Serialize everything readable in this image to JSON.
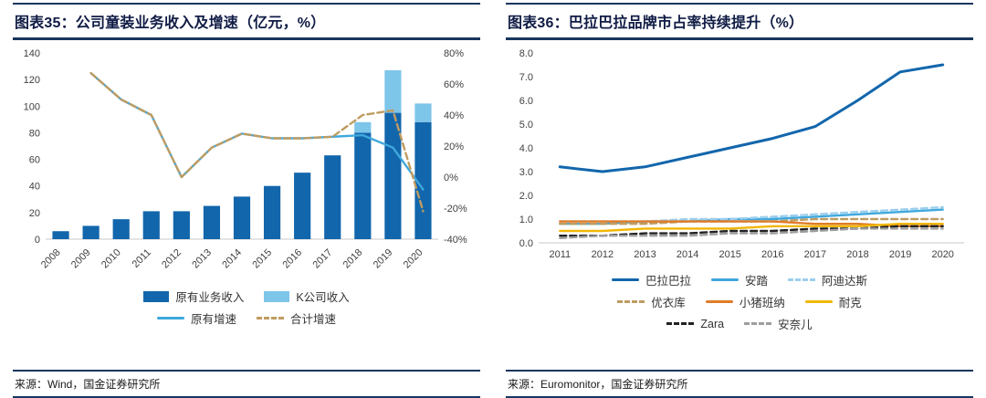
{
  "panels": [
    {
      "title": "图表35：公司童装业务收入及增速（亿元，%）",
      "source": "来源：Wind，国金证券研究所",
      "legend_rows": [
        [
          {
            "label": "原有业务收入",
            "swatch": "bar",
            "color": "#1266AC"
          },
          {
            "label": "K公司收入",
            "swatch": "bar",
            "color": "#7EC5EA"
          }
        ],
        [
          {
            "label": "原有增速",
            "swatch": "line",
            "color": "#3FA8DC"
          },
          {
            "label": "合计增速",
            "swatch": "dash",
            "color": "#BF9C62"
          }
        ]
      ]
    },
    {
      "title": "图表36：巴拉巴拉品牌市占率持续提升（%）",
      "source": "来源：Euromonitor，国金证券研究所",
      "legend_rows": [
        [
          {
            "label": "巴拉巴拉",
            "swatch": "line",
            "color": "#1266AC"
          },
          {
            "label": "安踏",
            "swatch": "line",
            "color": "#3FA8DC"
          },
          {
            "label": "阿迪达斯",
            "swatch": "dash",
            "color": "#9DCFEE"
          }
        ],
        [
          {
            "label": "优衣库",
            "swatch": "dash",
            "color": "#BF9C62"
          },
          {
            "label": "小猪班纳",
            "swatch": "line",
            "color": "#E07B28"
          },
          {
            "label": "耐克",
            "swatch": "line",
            "color": "#F2B705"
          }
        ],
        [
          {
            "label": "Zara",
            "swatch": "dash",
            "color": "#222222"
          },
          {
            "label": "安奈儿",
            "swatch": "dash",
            "color": "#9E9E9E"
          }
        ]
      ]
    }
  ],
  "chart_data": [
    {
      "type": "bar",
      "title": "公司童装业务收入及增速（亿元，%）",
      "xlabel": "",
      "ylabel": "",
      "legend_position": "bottom",
      "rotate_x": true,
      "categories": [
        "2008",
        "2009",
        "2010",
        "2011",
        "2012",
        "2013",
        "2014",
        "2015",
        "2016",
        "2017",
        "2018",
        "2019",
        "2020"
      ],
      "left_axis": {
        "min": 0,
        "max": 140,
        "step": 20
      },
      "right_axis": {
        "min": -40,
        "max": 80,
        "step": 20,
        "suffix": "%"
      },
      "series": [
        {
          "name": "原有业务收入",
          "kind": "bar",
          "color": "#1266AC",
          "values": [
            6,
            10,
            15,
            21,
            21,
            25,
            32,
            40,
            50,
            63,
            80,
            95,
            88
          ]
        },
        {
          "name": "K公司收入",
          "kind": "bar",
          "color": "#7EC5EA",
          "values": [
            0,
            0,
            0,
            0,
            0,
            0,
            0,
            0,
            0,
            0,
            8,
            32,
            14
          ]
        },
        {
          "name": "原有增速",
          "kind": "line",
          "color": "#3FA8DC",
          "values": [
            null,
            67,
            50,
            40,
            0,
            19,
            28,
            25,
            25,
            26,
            27,
            19,
            -8
          ]
        },
        {
          "name": "合计增速",
          "kind": "line",
          "dash": true,
          "color": "#BF9C62",
          "values": [
            null,
            67,
            50,
            40,
            0,
            19,
            28,
            25,
            25,
            26,
            40,
            43,
            -22
          ]
        }
      ]
    },
    {
      "type": "line",
      "title": "巴拉巴拉品牌市占率持续提升（%）",
      "xlabel": "",
      "ylabel": "",
      "legend_position": "bottom",
      "rotate_x": false,
      "categories": [
        "2011",
        "2012",
        "2013",
        "2014",
        "2015",
        "2016",
        "2017",
        "2018",
        "2019",
        "2020"
      ],
      "left_axis": {
        "min": 0,
        "max": 8,
        "step": 1,
        "decimals": 1
      },
      "series": [
        {
          "name": "巴拉巴拉",
          "kind": "line",
          "color": "#1266AC",
          "width": 3,
          "values": [
            3.2,
            3.0,
            3.2,
            3.6,
            4.0,
            4.4,
            4.9,
            6.0,
            7.2,
            7.5
          ]
        },
        {
          "name": "安踏",
          "kind": "line",
          "color": "#3FA8DC",
          "values": [
            0.8,
            0.8,
            0.9,
            0.9,
            1.0,
            1.0,
            1.1,
            1.2,
            1.3,
            1.4
          ]
        },
        {
          "name": "阿迪达斯",
          "kind": "line",
          "dash": true,
          "color": "#9DCFEE",
          "values": [
            0.9,
            0.9,
            0.9,
            1.0,
            1.0,
            1.1,
            1.2,
            1.3,
            1.4,
            1.5
          ]
        },
        {
          "name": "优衣库",
          "kind": "line",
          "dash": true,
          "color": "#BF9C62",
          "values": [
            0.8,
            0.8,
            0.8,
            0.9,
            0.9,
            0.9,
            1.0,
            1.0,
            1.0,
            1.0
          ]
        },
        {
          "name": "小猪班纳",
          "kind": "line",
          "color": "#E07B28",
          "values": [
            0.9,
            0.9,
            0.9,
            0.9,
            0.9,
            0.9,
            0.8,
            0.8,
            0.7,
            0.7
          ]
        },
        {
          "name": "耐克",
          "kind": "line",
          "color": "#F2B705",
          "values": [
            0.5,
            0.5,
            0.6,
            0.6,
            0.6,
            0.7,
            0.7,
            0.7,
            0.8,
            0.8
          ]
        },
        {
          "name": "Zara",
          "kind": "line",
          "dash": true,
          "color": "#222222",
          "values": [
            0.3,
            0.3,
            0.4,
            0.4,
            0.5,
            0.5,
            0.6,
            0.6,
            0.7,
            0.7
          ]
        },
        {
          "name": "安奈儿",
          "kind": "line",
          "dash": true,
          "color": "#9E9E9E",
          "values": [
            0.2,
            0.3,
            0.3,
            0.3,
            0.4,
            0.4,
            0.5,
            0.6,
            0.6,
            0.6
          ]
        }
      ]
    }
  ]
}
